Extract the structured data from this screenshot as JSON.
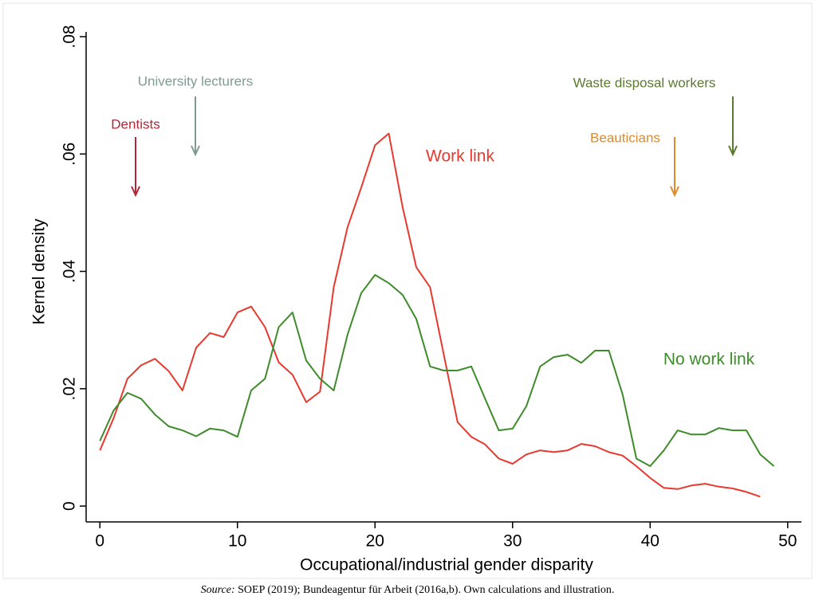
{
  "chart_data": {
    "type": "line",
    "y_label": "Kernel density",
    "x_label": "Occupational/industrial gender disparity",
    "footnote_label": "Source:",
    "footnote": "SOEP (2019); Bundeagentur für Arbeit (2016a,b). Own calculations and illustration.",
    "x": [
      0,
      1,
      2,
      3,
      4,
      5,
      6,
      7,
      8,
      9,
      10,
      11,
      12,
      13,
      14,
      15,
      16,
      17,
      18,
      19,
      20,
      21,
      22,
      23,
      24,
      25,
      26,
      27,
      28,
      29,
      30,
      31,
      32,
      33,
      34,
      35,
      36,
      37,
      38,
      39,
      40,
      41,
      42,
      43,
      44,
      45,
      46,
      47,
      48,
      49
    ],
    "series": [
      {
        "name": "Work link",
        "color": "#e8392f",
        "values": [
          0.0095,
          0.015,
          0.0217,
          0.024,
          0.0251,
          0.023,
          0.0197,
          0.027,
          0.0295,
          0.0288,
          0.033,
          0.034,
          0.0305,
          0.0245,
          0.0224,
          0.0177,
          0.0195,
          0.0373,
          0.0475,
          0.0543,
          0.0615,
          0.0635,
          0.051,
          0.0407,
          0.0373,
          0.0258,
          0.0143,
          0.0118,
          0.0105,
          0.0081,
          0.0072,
          0.0088,
          0.0095,
          0.0092,
          0.0095,
          0.0106,
          0.0102,
          0.0092,
          0.0086,
          0.0068,
          0.0048,
          0.0031,
          0.0029,
          0.0035,
          0.0038,
          0.0033,
          0.003,
          0.0024,
          0.0016,
          null
        ]
      },
      {
        "name": "No work link",
        "color": "#3d8b2a",
        "values": [
          0.0111,
          0.0163,
          0.0193,
          0.0183,
          0.0156,
          0.0136,
          0.0129,
          0.0119,
          0.0132,
          0.0129,
          0.0118,
          0.0197,
          0.0217,
          0.0305,
          0.033,
          0.0248,
          0.0217,
          0.0197,
          0.0292,
          0.0363,
          0.0394,
          0.038,
          0.036,
          0.0319,
          0.0238,
          0.0231,
          0.0231,
          0.0238,
          0.0183,
          0.0129,
          0.0132,
          0.017,
          0.0238,
          0.0254,
          0.0258,
          0.0244,
          0.0265,
          0.0265,
          0.019,
          0.0081,
          0.0068,
          0.0095,
          0.0129,
          0.0122,
          0.0122,
          0.0133,
          0.0129,
          0.0129,
          0.0088,
          0.0068
        ]
      }
    ],
    "annotations": [
      {
        "text": "Dentists",
        "color": "#b0283a"
      },
      {
        "text": "University lecturers",
        "color": "#7f9a93"
      },
      {
        "text": "Waste disposal workers",
        "color": "#5b7a30"
      },
      {
        "text": "Beauticians",
        "color": "#e08a2b"
      }
    ],
    "xlim": [
      -1,
      51
    ],
    "ylim": [
      -0.0027,
      0.08
    ],
    "xticks": [
      0,
      10,
      20,
      30,
      40,
      50
    ],
    "yticks": [
      0,
      {
        "value": 0.02,
        "label": ".02"
      },
      {
        "value": 0.04,
        "label": ".04"
      },
      {
        "value": 0.06,
        "label": ".06"
      },
      {
        "value": 0.08,
        "label": ".08"
      }
    ]
  }
}
